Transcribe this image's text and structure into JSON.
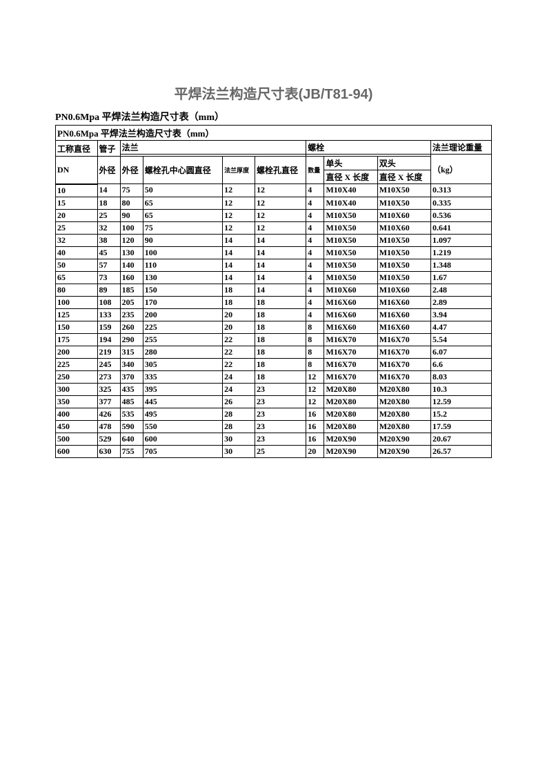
{
  "title": "平焊法兰构造尺寸表(JB/T81-94)",
  "subtitle": "PN0.6Mpa 平焊法兰构造尺寸表（mm）",
  "inner_subtitle": "PN0.6Mpa 平焊法兰构造尺寸表（mm）",
  "headers": {
    "nominal_diameter": "工称直径",
    "pipe": "管子",
    "flange": "法兰",
    "bolt": "螺栓",
    "flange_weight": "法兰理论重量",
    "dn": "DN",
    "outer_diameter1": "外径",
    "outer_diameter2": "外径",
    "bolt_hole_circle": "螺栓孔中心圆直径",
    "flange_thickness": "法兰厚度",
    "bolt_hole_diameter": "螺栓孔直径",
    "quantity": "数量",
    "single_head": "单头",
    "double_head": "双头",
    "diameter_length1": "直径 X 长度",
    "diameter_length2": "直径 X 长度",
    "kg": "（kg）"
  },
  "rows": [
    [
      "10",
      "14",
      "75",
      "50",
      "12",
      "12",
      "4",
      "M10X40",
      "M10X50",
      "0.313"
    ],
    [
      "15",
      "18",
      "80",
      "65",
      "12",
      "12",
      "4",
      "M10X40",
      "M10X50",
      "0.335"
    ],
    [
      "20",
      "25",
      "90",
      "65",
      "12",
      "12",
      "4",
      "M10X50",
      "M10X60",
      "0.536"
    ],
    [
      "25",
      "32",
      "100",
      "75",
      "12",
      "12",
      "4",
      "M10X50",
      "M10X60",
      "0.641"
    ],
    [
      "32",
      "38",
      "120",
      "90",
      "14",
      "14",
      "4",
      "M10X50",
      "M10X50",
      "1.097"
    ],
    [
      "40",
      "45",
      "130",
      "100",
      "14",
      "14",
      "4",
      "M10X50",
      "M10X50",
      "1.219"
    ],
    [
      "50",
      "57",
      "140",
      "110",
      "14",
      "14",
      "4",
      "M10X50",
      "M10X50",
      "1.348"
    ],
    [
      "65",
      "73",
      "160",
      "130",
      "14",
      "14",
      "4",
      "M10X50",
      "M10X50",
      "1.67"
    ],
    [
      "80",
      "89",
      "185",
      "150",
      "18",
      "14",
      "4",
      "M10X60",
      "M10X60",
      "2.48"
    ],
    [
      "100",
      "108",
      "205",
      "170",
      "18",
      "18",
      "4",
      "M16X60",
      "M16X60",
      "2.89"
    ],
    [
      "125",
      "133",
      "235",
      "200",
      "20",
      "18",
      "4",
      "M16X60",
      "M16X60",
      "3.94"
    ],
    [
      "150",
      "159",
      "260",
      "225",
      "20",
      "18",
      "8",
      "M16X60",
      "M16X60",
      "4.47"
    ],
    [
      "175",
      "194",
      "290",
      "255",
      "22",
      "18",
      "8",
      "M16X70",
      "M16X70",
      "5.54"
    ],
    [
      "200",
      "219",
      "315",
      "280",
      "22",
      "18",
      "8",
      "M16X70",
      "M16X70",
      "6.07"
    ],
    [
      "225",
      "245",
      "340",
      "305",
      "22",
      "18",
      "8",
      "M16X70",
      "M16X70",
      "6.6"
    ],
    [
      "250",
      "273",
      "370",
      "335",
      "24",
      "18",
      "12",
      "M16X70",
      "M16X70",
      "8.03"
    ],
    [
      "300",
      "325",
      "435",
      "395",
      "24",
      "23",
      "12",
      "M20X80",
      "M20X80",
      "10.3"
    ],
    [
      "350",
      "377",
      "485",
      "445",
      "26",
      "23",
      "12",
      "M20X80",
      "M20X80",
      "12.59"
    ],
    [
      "400",
      "426",
      "535",
      "495",
      "28",
      "23",
      "16",
      "M20X80",
      "M20X80",
      "15.2"
    ],
    [
      "450",
      "478",
      "590",
      "550",
      "28",
      "23",
      "16",
      "M20X80",
      "M20X80",
      "17.59"
    ],
    [
      "500",
      "529",
      "640",
      "600",
      "30",
      "23",
      "16",
      "M20X90",
      "M20X90",
      "20.67"
    ],
    [
      "600",
      "630",
      "755",
      "705",
      "30",
      "25",
      "20",
      "M20X90",
      "M20X90",
      "26.57"
    ]
  ]
}
